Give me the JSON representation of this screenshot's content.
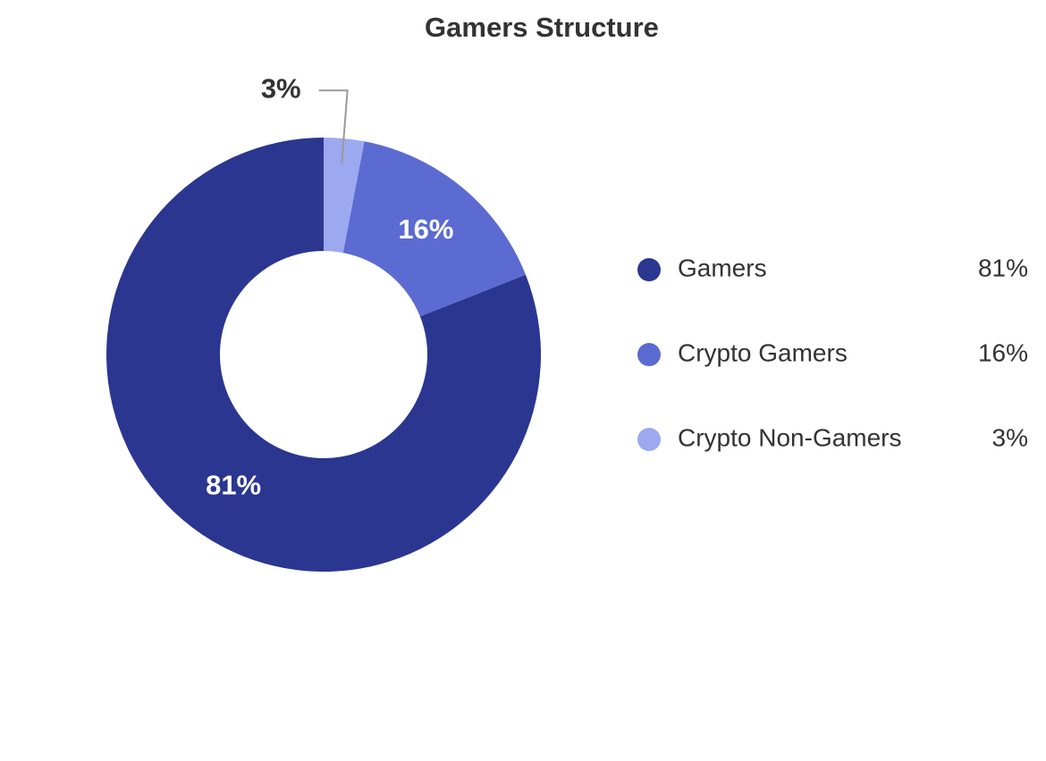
{
  "chart_data": {
    "type": "pie",
    "title": "Gamers Structure",
    "categories": [
      "Gamers",
      "Crypto Gamers",
      "Crypto Non-Gamers"
    ],
    "values": [
      81,
      16,
      3
    ],
    "value_labels": [
      "81%",
      "16%",
      "3%"
    ],
    "colors": [
      "#2b3691",
      "#5b6bd1",
      "#9ca8f0"
    ],
    "legend": "right"
  }
}
